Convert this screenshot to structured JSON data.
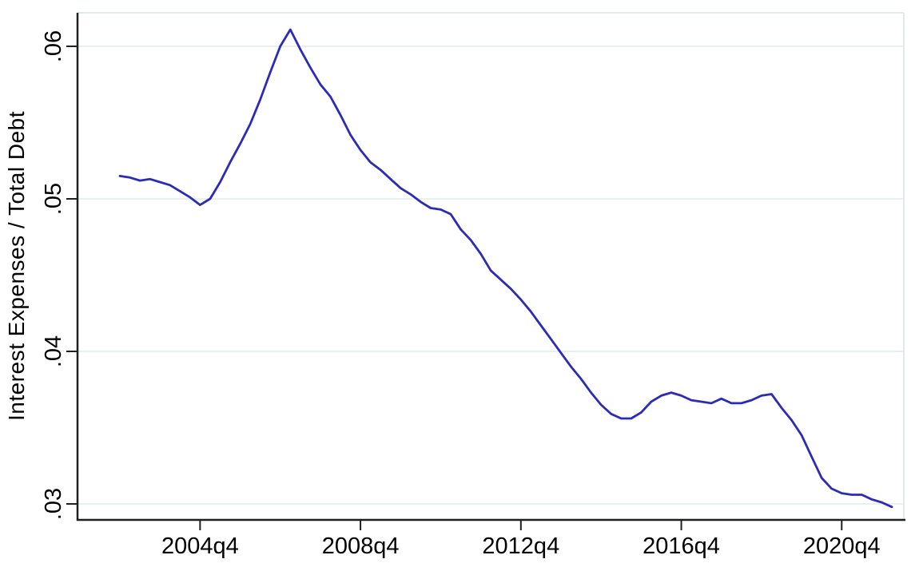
{
  "figure": {
    "background": "#ffffff"
  },
  "chart_data": {
    "type": "line",
    "title": "",
    "xlabel": "",
    "ylabel": "Interest Expenses / Total Debt",
    "x_tick_labels": [
      "2004q4",
      "2008q4",
      "2012q4",
      "2016q4",
      "2020q4"
    ],
    "y_tick_labels": [
      ".03",
      ".04",
      ".05",
      ".06"
    ],
    "ylim": [
      0.029,
      0.062
    ],
    "grid": "horizontal",
    "legend_position": "none",
    "style": {
      "line_color": "#2b2bb9",
      "grid_color": "#e9f0f1",
      "border_color": "#e0eaec",
      "axis_color": "#1f1f1f",
      "text_color": "#000000"
    },
    "series": [
      {
        "name": "Interest Expenses / Total Debt",
        "color": "#2b2bb9",
        "x": [
          "2002q4",
          "2003q1",
          "2003q2",
          "2003q3",
          "2003q4",
          "2004q1",
          "2004q2",
          "2004q3",
          "2004q4",
          "2005q1",
          "2005q2",
          "2005q3",
          "2005q4",
          "2006q1",
          "2006q2",
          "2006q3",
          "2006q4",
          "2007q1",
          "2007q2",
          "2007q3",
          "2007q4",
          "2008q1",
          "2008q2",
          "2008q3",
          "2008q4",
          "2009q1",
          "2009q2",
          "2009q3",
          "2009q4",
          "2010q1",
          "2010q2",
          "2010q3",
          "2010q4",
          "2011q1",
          "2011q2",
          "2011q3",
          "2011q4",
          "2012q1",
          "2012q2",
          "2012q3",
          "2012q4",
          "2013q1",
          "2013q2",
          "2013q3",
          "2013q4",
          "2014q1",
          "2014q2",
          "2014q3",
          "2014q4",
          "2015q1",
          "2015q2",
          "2015q3",
          "2015q4",
          "2016q1",
          "2016q2",
          "2016q3",
          "2016q4",
          "2017q1",
          "2017q2",
          "2017q3",
          "2017q4",
          "2018q1",
          "2018q2",
          "2018q3",
          "2018q4",
          "2019q1",
          "2019q2",
          "2019q3",
          "2019q4",
          "2020q1",
          "2020q2",
          "2020q3",
          "2020q4",
          "2021q1",
          "2021q2",
          "2021q3",
          "2021q4",
          "2022q1"
        ],
        "values": [
          0.0515,
          0.0514,
          0.0512,
          0.0513,
          0.0511,
          0.0509,
          0.0505,
          0.0501,
          0.0496,
          0.05,
          0.0511,
          0.0524,
          0.0536,
          0.0549,
          0.0565,
          0.0583,
          0.06,
          0.0611,
          0.0598,
          0.0586,
          0.0575,
          0.0567,
          0.0555,
          0.0542,
          0.0532,
          0.0524,
          0.0519,
          0.0513,
          0.0507,
          0.0503,
          0.0498,
          0.0494,
          0.0493,
          0.049,
          0.048,
          0.0473,
          0.0464,
          0.0453,
          0.0447,
          0.0441,
          0.0434,
          0.0426,
          0.0417,
          0.0408,
          0.0399,
          0.039,
          0.0382,
          0.0373,
          0.0365,
          0.0359,
          0.0356,
          0.0356,
          0.036,
          0.0367,
          0.0371,
          0.0373,
          0.0371,
          0.0368,
          0.0367,
          0.0366,
          0.0369,
          0.0366,
          0.0366,
          0.0368,
          0.0371,
          0.0372,
          0.0363,
          0.0355,
          0.0345,
          0.0331,
          0.0317,
          0.031,
          0.0307,
          0.0306,
          0.0306,
          0.0303,
          0.0301,
          0.0298
        ]
      }
    ]
  }
}
